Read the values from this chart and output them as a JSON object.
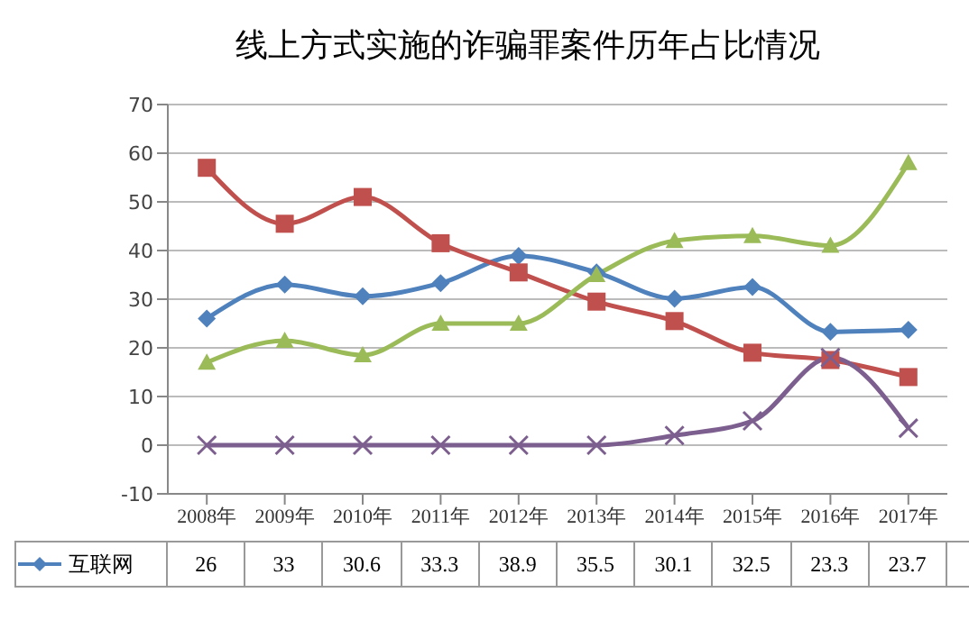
{
  "chart_data": {
    "type": "line",
    "title": "线上方式实施的诈骗罪案件历年占比情况",
    "categories": [
      "2008年",
      "2009年",
      "2010年",
      "2011年",
      "2012年",
      "2013年",
      "2014年",
      "2015年",
      "2016年",
      "2017年"
    ],
    "series": [
      {
        "name": "互联网",
        "color": "#4f81bd",
        "marker": "diamond",
        "values": [
          26,
          33,
          30.6,
          33.3,
          38.9,
          35.5,
          30.1,
          32.5,
          23.3,
          23.7
        ],
        "value_labels": [
          "26",
          "33",
          "30.6",
          "33.3",
          "38.9",
          "35.5",
          "30.1",
          "32.5",
          "23.3",
          "23.7"
        ]
      },
      {
        "color": "#c0504d",
        "marker": "square",
        "values": [
          57,
          45.5,
          51,
          41.5,
          35.5,
          29.5,
          25.5,
          19,
          17.5,
          14
        ]
      },
      {
        "color": "#9bbb59",
        "marker": "triangle",
        "values": [
          17,
          21.5,
          18.5,
          25,
          25,
          35,
          42,
          43,
          41,
          58
        ]
      },
      {
        "color": "#7d5f8f",
        "marker": "cross",
        "values": [
          0,
          0,
          0,
          0,
          0,
          0,
          2,
          5,
          18,
          3.5
        ]
      }
    ],
    "ylim": [
      -10,
      70
    ],
    "yticks": [
      -10,
      0,
      10,
      20,
      30,
      40,
      50,
      60,
      70
    ],
    "grid": "y",
    "legend": "bottom",
    "line_style": "solid"
  }
}
